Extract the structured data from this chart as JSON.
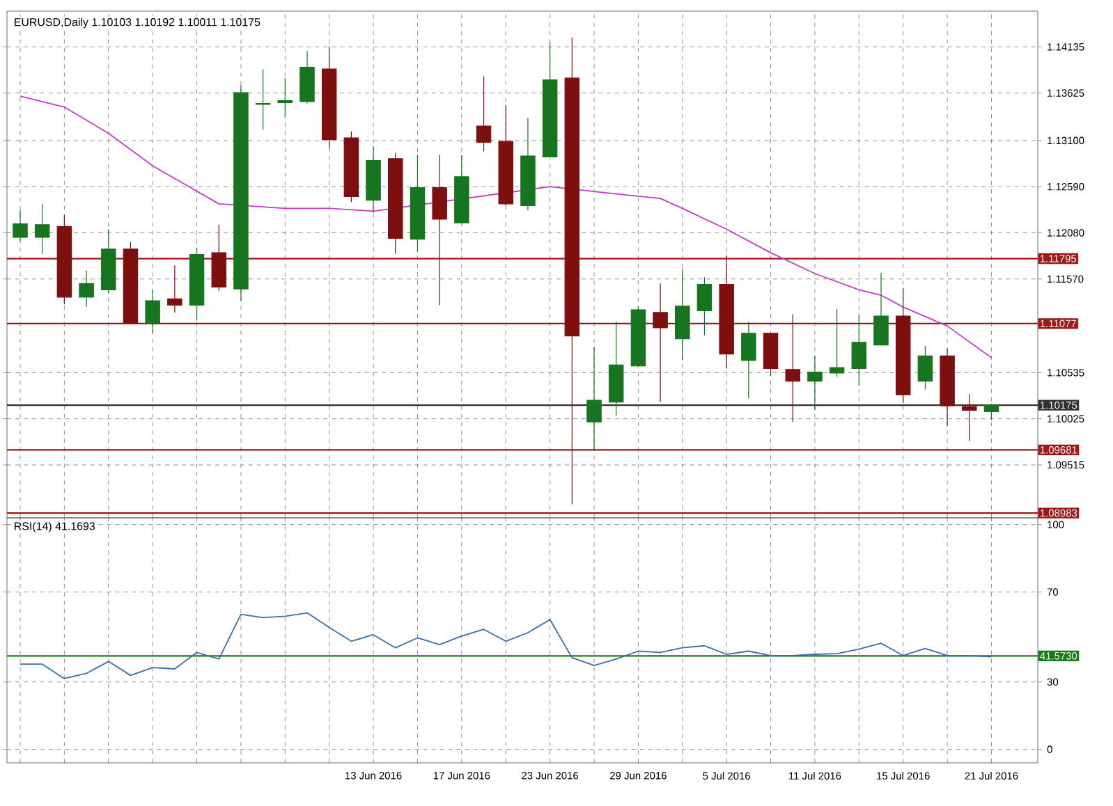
{
  "chart_data": [
    {
      "type": "candlestick",
      "title": "EURUSD,Daily  1.10103 1.10192 1.10011 1.10175",
      "categories": [
        null,
        null,
        null,
        null,
        null,
        null,
        null,
        null,
        null,
        null,
        null,
        null,
        null,
        null,
        null,
        null,
        null,
        null,
        null,
        null,
        null,
        null,
        null,
        null,
        null,
        null,
        null,
        null,
        null,
        null,
        null,
        null,
        null,
        null,
        null,
        null,
        null,
        null,
        null,
        null,
        null,
        null,
        null,
        null,
        null
      ],
      "ohlc": [
        [
          1.1203,
          1.1233,
          1.1199,
          1.1218
        ],
        [
          1.1203,
          1.124,
          1.1185,
          1.1217
        ],
        [
          1.1215,
          1.1228,
          1.1129,
          1.1137
        ],
        [
          1.1137,
          1.1166,
          1.1126,
          1.1152
        ],
        [
          1.1145,
          1.1212,
          1.1141,
          1.119
        ],
        [
          1.119,
          1.1198,
          1.1108,
          1.1108
        ],
        [
          1.1108,
          1.1145,
          1.1097,
          1.1133
        ],
        [
          1.1135,
          1.1172,
          1.112,
          1.1128
        ],
        [
          1.1128,
          1.1191,
          1.1111,
          1.1184
        ],
        [
          1.1186,
          1.1217,
          1.1144,
          1.1148
        ],
        [
          1.1146,
          1.1371,
          1.1133,
          1.1363
        ],
        [
          1.135,
          1.1389,
          1.1322,
          1.1351
        ],
        [
          1.1352,
          1.1379,
          1.1336,
          1.1354
        ],
        [
          1.1353,
          1.1409,
          1.1351,
          1.1391
        ],
        [
          1.1389,
          1.1414,
          1.1301,
          1.1311
        ],
        [
          1.1313,
          1.132,
          1.1242,
          1.1248
        ],
        [
          1.1244,
          1.1304,
          1.123,
          1.1288
        ],
        [
          1.129,
          1.1296,
          1.1185,
          1.1202
        ],
        [
          1.1201,
          1.1294,
          1.1187,
          1.1258
        ],
        [
          1.1258,
          1.1294,
          1.1128,
          1.1223
        ],
        [
          1.1219,
          1.1294,
          1.1218,
          1.127
        ],
        [
          1.1326,
          1.1381,
          1.1298,
          1.1308
        ],
        [
          1.1309,
          1.1349,
          1.1238,
          1.124
        ],
        [
          1.1238,
          1.1335,
          1.1233,
          1.1293
        ],
        [
          1.1292,
          1.1419,
          1.1292,
          1.1377
        ],
        [
          1.1379,
          1.1424,
          1.0908,
          1.1094
        ],
        [
          1.0999,
          1.1082,
          1.0967,
          1.1023
        ],
        [
          1.1021,
          1.111,
          1.1006,
          1.1062
        ],
        [
          1.1061,
          1.1127,
          1.106,
          1.1123
        ],
        [
          1.112,
          1.1152,
          1.1021,
          1.1103
        ],
        [
          1.1091,
          1.1168,
          1.1067,
          1.1127
        ],
        [
          1.1122,
          1.1159,
          1.1095,
          1.1151
        ],
        [
          1.1151,
          1.1183,
          1.1058,
          1.1074
        ],
        [
          1.1067,
          1.111,
          1.1025,
          1.1097
        ],
        [
          1.1097,
          1.1097,
          1.105,
          1.1058
        ],
        [
          1.1057,
          1.1118,
          1.0999,
          1.1044
        ],
        [
          1.1044,
          1.1072,
          1.1012,
          1.1054
        ],
        [
          1.1053,
          1.1124,
          1.1049,
          1.1059
        ],
        [
          1.1058,
          1.1118,
          1.1039,
          1.1087
        ],
        [
          1.1084,
          1.1164,
          1.1084,
          1.1116
        ],
        [
          1.1116,
          1.1147,
          1.102,
          1.1029
        ],
        [
          1.1044,
          1.1083,
          1.1035,
          1.1072
        ],
        [
          1.1072,
          1.108,
          1.0995,
          1.1017
        ],
        [
          1.1016,
          1.103,
          1.0978,
          1.1012
        ],
        [
          1.10103,
          1.10192,
          1.10011,
          1.10175
        ]
      ],
      "colors": [
        "#17741f",
        "#17741f",
        "#7d0f0f",
        "#17741f",
        "#17741f",
        "#7d0f0f",
        "#17741f",
        "#7d0f0f",
        "#17741f",
        "#7d0f0f",
        "#17741f",
        "#17741f",
        "#17741f",
        "#17741f",
        "#7d0f0f",
        "#7d0f0f",
        "#17741f",
        "#7d0f0f",
        "#17741f",
        "#7d0f0f",
        "#17741f",
        "#7d0f0f",
        "#7d0f0f",
        "#17741f",
        "#17741f",
        "#7d0f0f",
        "#17741f",
        "#17741f",
        "#17741f",
        "#7d0f0f",
        "#17741f",
        "#17741f",
        "#7d0f0f",
        "#17741f",
        "#7d0f0f",
        "#7d0f0f",
        "#17741f",
        "#17741f",
        "#17741f",
        "#17741f",
        "#7d0f0f",
        "#17741f",
        "#7d0f0f",
        "#7d0f0f",
        "#17741f"
      ],
      "series": [
        {
          "type": "line",
          "color": "#c040c0",
          "values": [
            1.1359,
            null,
            1.1347,
            null,
            1.1318,
            null,
            1.1282,
            null,
            null,
            1.124,
            null,
            null,
            1.1235,
            null,
            1.1235,
            null,
            1.1232,
            null,
            null,
            null,
            null,
            null,
            null,
            null,
            1.1259,
            null,
            null,
            1.1251,
            null,
            1.1246,
            1.1235,
            null,
            1.1212,
            null,
            1.1186,
            null,
            1.1163,
            null,
            1.1145,
            1.1139,
            1.1126,
            null,
            1.1105,
            null,
            1.107
          ]
        }
      ],
      "ylim": [
        1.0893,
        1.1453
      ],
      "yticks": [
        {
          "value": 1.14135,
          "label": "1.14135"
        },
        {
          "value": 1.13625,
          "label": "1.13625"
        },
        {
          "value": 1.131,
          "label": "1.13100"
        },
        {
          "value": 1.1259,
          "label": "1.12590"
        },
        {
          "value": 1.1208,
          "label": "1.12080"
        },
        {
          "value": 1.1157,
          "label": "1.11570"
        },
        {
          "value": 1.10535,
          "label": "1.10535"
        },
        {
          "value": 1.10025,
          "label": "1.10025"
        },
        {
          "value": 1.09515,
          "label": "1.09515"
        }
      ],
      "ref_lines": [
        {
          "axis": "y",
          "value": 1.11795,
          "label": "1.11795",
          "color": "#a01818"
        },
        {
          "axis": "y",
          "value": 1.11077,
          "label": "1.11077",
          "color": "#a01818"
        },
        {
          "axis": "y",
          "value": 1.09681,
          "label": "1.09681",
          "color": "#a01818"
        },
        {
          "axis": "y",
          "value": 1.08983,
          "label": "1.08983",
          "color": "#a01818"
        },
        {
          "axis": "y",
          "value": 1.10175,
          "label": "1.10175",
          "color": "#303030"
        }
      ],
      "grid": true,
      "tick_labels": "y"
    },
    {
      "type": "line",
      "title": "RSI(14) 41.1693",
      "categories": [
        null,
        null,
        null,
        null,
        null,
        null,
        null,
        null,
        null,
        null,
        null,
        null,
        null,
        null,
        null,
        null,
        "13 Jun 2016",
        null,
        null,
        null,
        "17 Jun 2016",
        null,
        null,
        null,
        "23 Jun 2016",
        null,
        null,
        null,
        "29 Jun 2016",
        null,
        null,
        null,
        "5 Jul 2016",
        null,
        null,
        null,
        "11 Jul 2016",
        null,
        null,
        null,
        "15 Jul 2016",
        null,
        null,
        null,
        "21 Jul 2016"
      ],
      "series": [
        {
          "color": "#3a6ea5",
          "values": [
            37.9,
            37.9,
            31.5,
            33.8,
            39.1,
            32.9,
            36.4,
            35.8,
            43.1,
            40.2,
            60.1,
            58.6,
            59.2,
            60.7,
            54.2,
            48.1,
            51.0,
            45.2,
            49.6,
            46.6,
            50.4,
            53.4,
            48.1,
            51.9,
            57.7,
            40.8,
            37.3,
            40.2,
            43.7,
            43.1,
            45.2,
            46.1,
            42.3,
            43.7,
            41.7,
            41.7,
            42.3,
            42.6,
            44.6,
            47.2,
            41.7,
            44.9,
            41.7,
            41.7,
            41.2
          ]
        }
      ],
      "ylim": [
        -6,
        103
      ],
      "yticks": [
        0,
        30,
        70,
        100
      ],
      "ref_lines": [
        {
          "axis": "y",
          "value": 41.573,
          "label": "41.5730",
          "color": "#1a7a1a"
        }
      ],
      "grid": true
    }
  ]
}
